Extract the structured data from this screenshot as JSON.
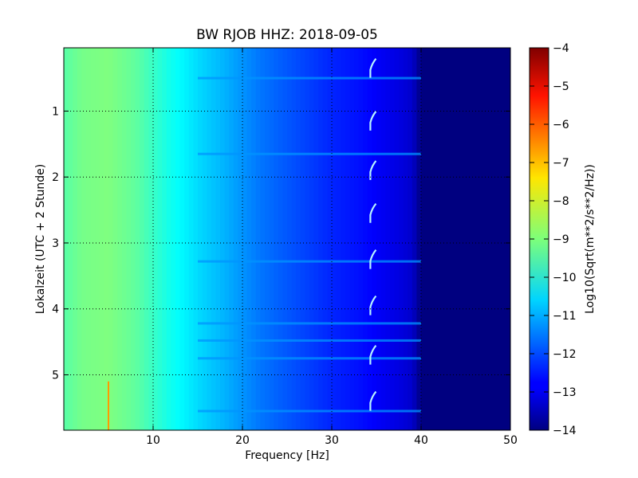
{
  "chart_data": {
    "type": "heatmap",
    "title": "BW RJOB HHZ: 2018-09-05",
    "xlabel": "Frequency [Hz]",
    "ylabel": "Lokalzeit (UTC + 2 Stunde)",
    "xlim": [
      0,
      50
    ],
    "ylim": [
      5.84,
      0.04
    ],
    "x_ticks": [
      {
        "value": 10,
        "label": "10"
      },
      {
        "value": 20,
        "label": "20"
      },
      {
        "value": 30,
        "label": "30"
      },
      {
        "value": 40,
        "label": "40"
      },
      {
        "value": 50,
        "label": "50"
      }
    ],
    "y_ticks": [
      {
        "value": 1,
        "label": "1"
      },
      {
        "value": 2,
        "label": "2"
      },
      {
        "value": 3,
        "label": "3"
      },
      {
        "value": 4,
        "label": "4"
      },
      {
        "value": 5,
        "label": "5"
      }
    ],
    "grid": true,
    "colormap": "jet",
    "colorbar": {
      "label": "Log10(Sqrt(m**2/s**2/Hz))",
      "range": [
        -14,
        -4
      ],
      "ticks": [
        {
          "value": -4,
          "label": "−4"
        },
        {
          "value": -5,
          "label": "−5"
        },
        {
          "value": -6,
          "label": "−6"
        },
        {
          "value": -7,
          "label": "−7"
        },
        {
          "value": -8,
          "label": "−8"
        },
        {
          "value": -9,
          "label": "−9"
        },
        {
          "value": -10,
          "label": "−10"
        },
        {
          "value": -11,
          "label": "−11"
        },
        {
          "value": -12,
          "label": "−12"
        },
        {
          "value": -13,
          "label": "−13"
        },
        {
          "value": -14,
          "label": "−14"
        }
      ]
    },
    "spectrum_profile": {
      "frequency_hz": [
        0,
        2,
        5,
        8,
        10,
        12,
        15,
        18,
        20,
        22,
        25,
        28,
        30,
        33,
        35,
        37,
        38,
        39,
        39.5,
        40,
        45,
        50
      ],
      "level": [
        -9.4,
        -9.1,
        -9.0,
        -9.3,
        -9.7,
        -10.1,
        -10.6,
        -11.0,
        -11.3,
        -11.6,
        -11.9,
        -12.2,
        -12.4,
        -12.6,
        -12.8,
        -13.0,
        -13.1,
        -13.25,
        -13.6,
        -14.0,
        -14.0,
        -14.0
      ]
    },
    "narrow_line": {
      "frequency_hz": 5,
      "from_hour": 5.1,
      "level": -7.2
    },
    "transient_events": [
      {
        "hour": 0.35,
        "frequency_hz": 34.5
      },
      {
        "hour": 1.15,
        "frequency_hz": 34.5
      },
      {
        "hour": 1.9,
        "frequency_hz": 34.5
      },
      {
        "hour": 2.55,
        "frequency_hz": 34.5
      },
      {
        "hour": 3.25,
        "frequency_hz": 34.5
      },
      {
        "hour": 3.95,
        "frequency_hz": 34.5
      },
      {
        "hour": 4.7,
        "frequency_hz": 34.5
      },
      {
        "hour": 5.4,
        "frequency_hz": 34.5
      }
    ],
    "noisy_rows_hours": [
      0.5,
      1.65,
      3.28,
      4.22,
      4.48,
      4.75,
      5.55
    ]
  }
}
